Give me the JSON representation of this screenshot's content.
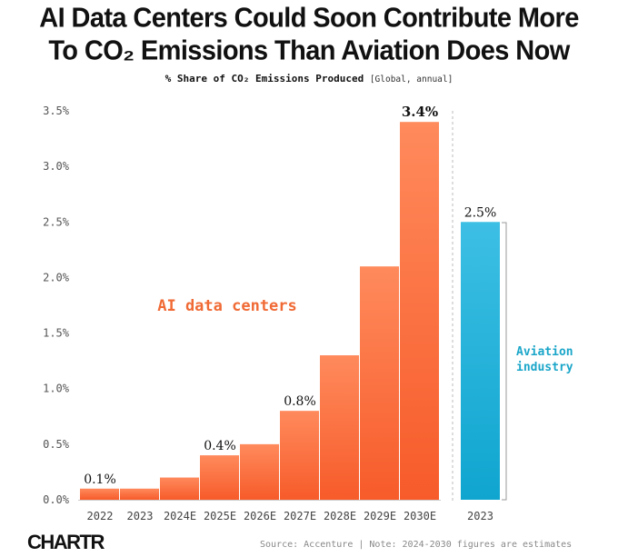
{
  "title_line1": "AI Data Centers Could Soon Contribute More",
  "title_line2": "To CO₂ Emissions Than Aviation Does Now",
  "subtitle": "% Share of CO₂ Emissions Produced",
  "subtitle_note": "[Global, annual]",
  "source": "Source: Accenture | Note: 2024-2030 figures are estimates",
  "logo": "CHARTR",
  "colors": {
    "ai": "#f96b3c",
    "aviation": "#1ab0d8",
    "ai_label": "#f06a35",
    "aviation_label": "#1ba6c9"
  },
  "chart_data": {
    "type": "bar",
    "ylim": [
      0,
      3.5
    ],
    "yticks": [
      0,
      0.5,
      1.0,
      1.5,
      2.0,
      2.5,
      3.0,
      3.5
    ],
    "ytick_labels": [
      "0.0%",
      "0.5%",
      "1.0%",
      "1.5%",
      "2.0%",
      "2.5%",
      "3.0%",
      "3.5%"
    ],
    "grid": false,
    "series": [
      {
        "name": "AI data centers",
        "categories": [
          "2022",
          "2023",
          "2024E",
          "2025E",
          "2026E",
          "2027E",
          "2028E",
          "2029E",
          "2030E"
        ],
        "values": [
          0.1,
          0.1,
          0.2,
          0.4,
          0.5,
          0.8,
          1.3,
          2.1,
          3.4
        ],
        "data_labels": [
          "0.1%",
          "",
          "",
          "0.4%",
          "",
          "0.8%",
          "",
          "",
          "3.4%"
        ]
      },
      {
        "name": "Aviation industry",
        "categories": [
          "2023"
        ],
        "values": [
          2.5
        ],
        "data_labels": [
          "2.5%"
        ]
      }
    ],
    "annotations": [
      "AI data centers",
      "Aviation",
      "industry"
    ]
  }
}
